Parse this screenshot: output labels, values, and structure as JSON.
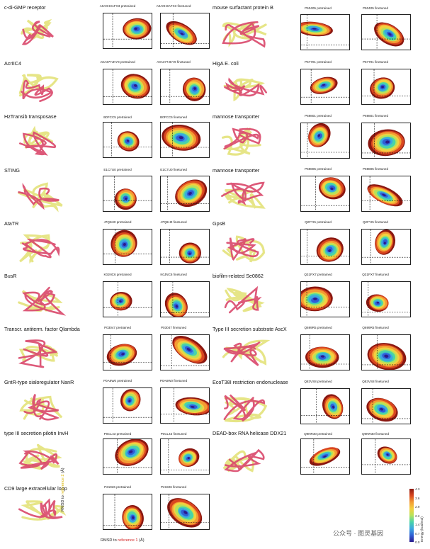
{
  "colors": {
    "ref1": "#d9476a",
    "ref2": "#e3e27a",
    "cmap": [
      "#2a1b8c",
      "#2f5fd6",
      "#3ba7e0",
      "#49d3a9",
      "#b7e25a",
      "#f4d03f",
      "#f39c34",
      "#d9461f",
      "#8a1710"
    ]
  },
  "colorbar": {
    "title": "Energy (kcal/mol)",
    "ticks": [
      "4.3",
      "3.6",
      "2.9",
      "2.2",
      "1.4",
      "0.7",
      "0.0"
    ]
  },
  "axes": {
    "ylabel": "RMSD to reference 2 (Å)",
    "xlabel_prefix": "RMSD to ",
    "xlabel_ref": "reference 1",
    "xlabel_suffix": " (Å)",
    "ylabel_prefix": "RMSD to ",
    "ylabel_ref": "reference 2",
    "ylabel_suffix": " (Å)"
  },
  "watermark": "公众号 · 图灵基因",
  "left": [
    {
      "name": "c-di-GMP receptor",
      "pre": "A0A0H3AFX3 pretrained",
      "fine": "A0A0H3AFX3 finetuned"
    },
    {
      "name": "AcrIIC4",
      "pre": "A0A377JKY9 pretrained",
      "fine": "A0A377JKY9 finetuned"
    },
    {
      "name": "HzTransib transposase",
      "pre": "B0FCC5 pretrained",
      "fine": "B0FCC5 finetuned"
    },
    {
      "name": "STING",
      "pre": "E1C7U0 pretrained",
      "fine": "E1C7U0 finetuned"
    },
    {
      "name": "AtaTR",
      "pre": "J7Q6H0 pretrained",
      "fine": "J7Q6H0 finetuned"
    },
    {
      "name": "BusR",
      "pre": "K0JNC6 pretrained",
      "fine": "K0JNC6 finetuned"
    },
    {
      "name": "Transcr. antiterm. factor Qlambda",
      "pre": "P03047 pretrained",
      "fine": "P03047 finetuned"
    },
    {
      "name": "GntR-type sialoregulator NanR",
      "pre": "P0A8W0 pretrained",
      "fine": "P0A8W0 finetuned"
    },
    {
      "name": "type III secretion pilotin InvH",
      "pre": "P0CL43 pretrained",
      "fine": "P0CL43 finetuned"
    },
    {
      "name": "CD9 large extracellular loop",
      "pre": "P21926 pretrained",
      "fine": "P21926 finetuned"
    }
  ],
  "right": [
    {
      "name": "mouse surfactant protein B",
      "pre": "P50405 pretrained",
      "fine": "P50405 finetuned"
    },
    {
      "name": "HigA E. coli",
      "pre": "P67701 pretrained",
      "fine": "P67701 finetuned"
    },
    {
      "name": "mannose transporter",
      "pre": "P69801 pretrained",
      "fine": "P69801 finetuned"
    },
    {
      "name": "mannose transporter",
      "pre": "P69805 pretrained",
      "fine": "P69805 finetuned"
    },
    {
      "name": "GpsB",
      "pre": "Q2FYI5 pretrained",
      "fine": "Q2FYI5 finetuned"
    },
    {
      "name": "biofilm-related Se0862",
      "pre": "Q31PX7 pretrained",
      "fine": "Q31PX7 finetuned"
    },
    {
      "name": "Type III secretion substrate AscX",
      "pre": "Q699R5 pretrained",
      "fine": "Q699R5 finetuned"
    },
    {
      "name": "EcoT38I restriction endonuclease",
      "pre": "Q83VS8 pretrained",
      "fine": "Q83VS8 finetuned"
    },
    {
      "name": "DEAD-box RNA helicase DDX21",
      "pre": "Q9NR30 pretrained",
      "fine": "Q9NR30 finetuned"
    }
  ]
}
